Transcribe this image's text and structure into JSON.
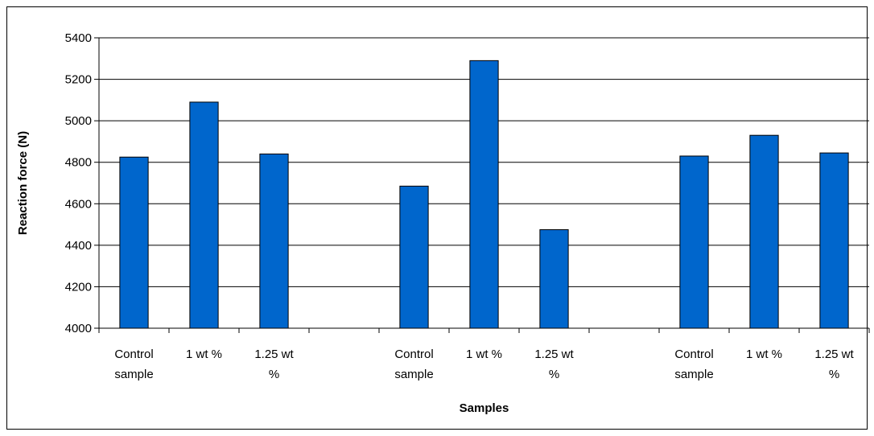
{
  "chart_data": {
    "type": "bar",
    "title": "",
    "xlabel": "Samples",
    "ylabel": "Reaction force (N)",
    "ylim": [
      4000,
      5400
    ],
    "ytick_step": 200,
    "grid": true,
    "legend": "none",
    "bar_color": "#0066CC",
    "categories": [
      [
        "Control",
        "sample"
      ],
      [
        "1 wt %"
      ],
      [
        "1.25 wt",
        "%"
      ],
      [],
      [
        "Control",
        "sample"
      ],
      [
        "1 wt %"
      ],
      [
        "1.25 wt",
        "%"
      ],
      [],
      [
        "Control",
        "sample"
      ],
      [
        "1 wt %"
      ],
      [
        "1.25 wt",
        "%"
      ]
    ],
    "values": [
      4825,
      5090,
      4840,
      null,
      4685,
      5290,
      4475,
      null,
      4830,
      4930,
      4845
    ]
  }
}
